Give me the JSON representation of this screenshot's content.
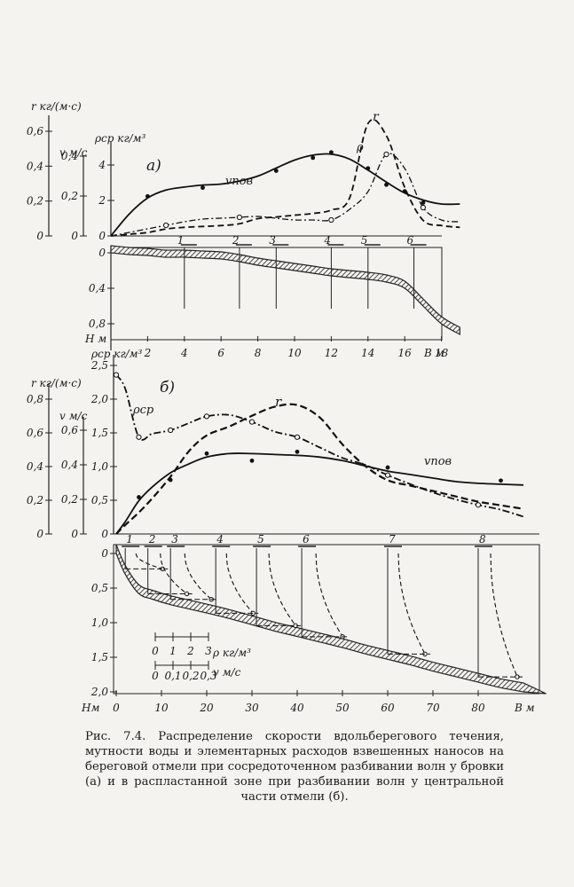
{
  "panel_a": {
    "tag": "а)",
    "axes": {
      "r_label": "r кг/(м·с)",
      "r_ticks": [
        "0,6",
        "0,4",
        "0,2",
        "0"
      ],
      "v_label": "v м/с",
      "v_ticks": [
        "0,4",
        "0,2",
        "0"
      ],
      "rho_label": "ρср кг/м³",
      "rho_ticks": [
        "4",
        "2",
        "0"
      ],
      "depth_ticks": [
        "0",
        "0,4",
        "0,8"
      ],
      "depth_label": "Н м",
      "x_label": "В м",
      "x_ticks": [
        "2",
        "4",
        "6",
        "8",
        "10",
        "12",
        "14",
        "16",
        "18"
      ]
    },
    "curve_labels": {
      "v": "vпов",
      "rho": "ρ",
      "r": "r"
    },
    "stations": [
      "1",
      "2",
      "3",
      "4",
      "5",
      "6"
    ]
  },
  "panel_b": {
    "tag": "б)",
    "axes": {
      "r_label": "r кг/(м·с)",
      "r_ticks": [
        "0,8",
        "0,6",
        "0,4",
        "0,2",
        "0"
      ],
      "v_label": "v м/с",
      "v_ticks": [
        "0,6",
        "0,4",
        "0,2",
        "0"
      ],
      "rho_label": "ρср кг/м³",
      "rho_ticks": [
        "2,5",
        "2,0",
        "1,5",
        "1,0",
        "0,5",
        "0"
      ],
      "depth_ticks": [
        "0",
        "0,5",
        "1,0",
        "1,5",
        "2,0"
      ],
      "depth_label": "Нм",
      "x_label": "В м",
      "x_ticks": [
        "0",
        "10",
        "20",
        "30",
        "40",
        "50",
        "60",
        "70",
        "80"
      ]
    },
    "curve_labels": {
      "v": "vпов",
      "rho": "ρср",
      "r": "r"
    },
    "stations": [
      "1",
      "2",
      "3",
      "4",
      "5",
      "6",
      "7",
      "8"
    ],
    "scale": {
      "rho_ticks": [
        "0",
        "1",
        "2",
        "3"
      ],
      "rho_unit": "ρ кг/м³",
      "v_ticks": [
        "0",
        "0,1",
        "0,2",
        "0,3"
      ],
      "v_unit": "v м/с"
    }
  },
  "caption": "Рис. 7.4. Распределение скорости вдольберегового течения, мутности воды и элементарных расходов взвешенных наносов на береговой отмели при сосредоточенном разбивании волн у бровки (а) и в распластанной зоне при разбивании волн у центральной части отмели (б).",
  "chart_data": [
    {
      "type": "line",
      "title": "а)",
      "xlabel": "В м",
      "x": [
        0,
        1,
        2,
        3,
        4,
        5,
        6,
        7,
        8,
        9,
        10,
        11,
        12,
        13,
        14,
        15,
        16,
        17,
        18,
        19
      ],
      "series": [
        {
          "name": "vпов",
          "units": "м/с",
          "values": [
            0.0,
            0.11,
            0.19,
            0.23,
            0.245,
            0.255,
            0.26,
            0.275,
            0.3,
            0.34,
            0.38,
            0.405,
            0.41,
            0.385,
            0.33,
            0.27,
            0.215,
            0.18,
            0.16,
            0.16
          ]
        },
        {
          "name": "ρ",
          "units": "кг/м³",
          "values": [
            0.0,
            0.2,
            0.4,
            0.6,
            0.8,
            0.95,
            1.0,
            1.05,
            1.1,
            1.0,
            0.9,
            0.9,
            0.9,
            1.5,
            2.5,
            4.6,
            3.8,
            1.6,
            0.9,
            0.8
          ]
        },
        {
          "name": "r",
          "units": "кг/(м·с)",
          "values": [
            0.0,
            0.01,
            0.02,
            0.04,
            0.05,
            0.055,
            0.06,
            0.07,
            0.1,
            0.11,
            0.12,
            0.13,
            0.15,
            0.22,
            0.65,
            0.58,
            0.28,
            0.09,
            0.06,
            0.05
          ]
        },
        {
          "name": "Н",
          "units": "м",
          "values": [
            0.0,
            0.02,
            0.03,
            0.05,
            0.05,
            0.06,
            0.07,
            0.1,
            0.14,
            0.17,
            0.2,
            0.23,
            0.26,
            0.28,
            0.3,
            0.33,
            0.4,
            0.6,
            0.8,
            0.92
          ]
        }
      ]
    },
    {
      "type": "line",
      "title": "б)",
      "xlabel": "В м",
      "x": [
        0,
        2,
        5,
        8,
        12,
        16,
        20,
        25,
        30,
        35,
        40,
        45,
        50,
        55,
        60,
        65,
        70,
        75,
        80,
        85,
        90
      ],
      "series": [
        {
          "name": "vпов",
          "units": "м/с",
          "values": [
            0.0,
            0.07,
            0.19,
            0.27,
            0.35,
            0.4,
            0.44,
            0.46,
            0.46,
            0.455,
            0.45,
            0.44,
            0.42,
            0.39,
            0.36,
            0.34,
            0.32,
            0.3,
            0.29,
            0.285,
            0.28
          ]
        },
        {
          "name": "ρср",
          "units": "кг/м³",
          "values": [
            2.3,
            2.1,
            1.4,
            1.45,
            1.5,
            1.6,
            1.7,
            1.72,
            1.62,
            1.48,
            1.4,
            1.25,
            1.1,
            1.0,
            0.85,
            0.72,
            0.6,
            0.5,
            0.42,
            0.35,
            0.25
          ]
        },
        {
          "name": "r",
          "units": "кг/(м·с)",
          "values": [
            0.0,
            0.05,
            0.12,
            0.2,
            0.32,
            0.46,
            0.55,
            0.6,
            0.66,
            0.71,
            0.72,
            0.65,
            0.5,
            0.38,
            0.3,
            0.27,
            0.24,
            0.21,
            0.18,
            0.16,
            0.14
          ]
        },
        {
          "name": "Н",
          "units": "м",
          "values": [
            0.0,
            0.3,
            0.58,
            0.66,
            0.74,
            0.8,
            0.86,
            0.94,
            1.03,
            1.12,
            1.2,
            1.28,
            1.36,
            1.45,
            1.53,
            1.61,
            1.7,
            1.78,
            1.86,
            1.94,
            2.0
          ]
        }
      ]
    }
  ]
}
